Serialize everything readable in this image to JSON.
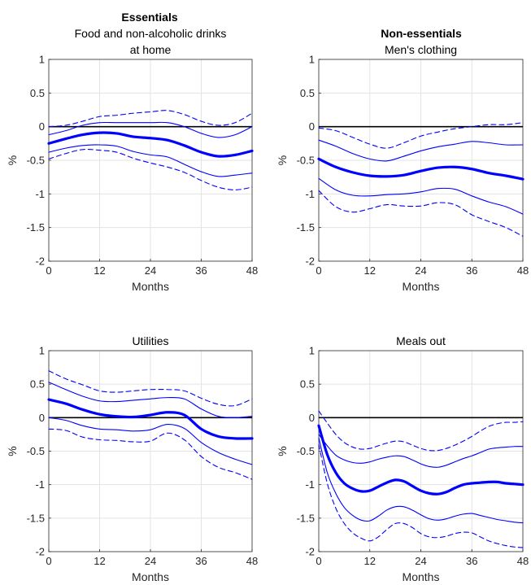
{
  "figure": {
    "column_headers": [
      "Essentials",
      "Non-essentials"
    ]
  },
  "chart_data": [
    {
      "type": "line",
      "title": "Food and non-alcoholic drinks at home",
      "title_lines": [
        "Food and non-alcoholic drinks",
        "at home"
      ],
      "xlabel": "Months",
      "ylabel": "%",
      "xlim": [
        0,
        48
      ],
      "ylim": [
        -2,
        1
      ],
      "xticks": [
        0,
        12,
        24,
        36,
        48
      ],
      "yticks": [
        1,
        0.5,
        0,
        -0.5,
        -1,
        -1.5,
        -2
      ],
      "grid": true,
      "zero_line": true,
      "x": [
        0,
        4,
        8,
        12,
        16,
        20,
        24,
        28,
        32,
        36,
        40,
        44,
        48
      ],
      "series": [
        {
          "role": "central",
          "values": [
            -0.25,
            -0.18,
            -0.12,
            -0.09,
            -0.1,
            -0.15,
            -0.17,
            -0.2,
            -0.28,
            -0.38,
            -0.44,
            -0.42,
            -0.36
          ]
        },
        {
          "role": "inner_upper",
          "values": [
            -0.12,
            -0.06,
            0.02,
            0.06,
            0.06,
            0.06,
            0.06,
            0.06,
            0.0,
            -0.1,
            -0.16,
            -0.12,
            0.0
          ]
        },
        {
          "role": "inner_lower",
          "values": [
            -0.38,
            -0.32,
            -0.28,
            -0.27,
            -0.29,
            -0.37,
            -0.42,
            -0.45,
            -0.56,
            -0.67,
            -0.74,
            -0.72,
            -0.69
          ]
        },
        {
          "role": "outer_upper",
          "values": [
            0.0,
            0.02,
            0.08,
            0.15,
            0.17,
            0.2,
            0.22,
            0.24,
            0.18,
            0.08,
            0.02,
            0.06,
            0.2
          ]
        },
        {
          "role": "outer_lower",
          "values": [
            -0.48,
            -0.4,
            -0.34,
            -0.35,
            -0.38,
            -0.47,
            -0.54,
            -0.6,
            -0.68,
            -0.8,
            -0.9,
            -0.94,
            -0.9
          ]
        }
      ],
      "colors": {
        "bands": "#0000ff",
        "zero": "#000000"
      }
    },
    {
      "type": "line",
      "title": "Men's clothing",
      "title_lines": [
        "Men's clothing"
      ],
      "xlabel": "Months",
      "ylabel": "%",
      "xlim": [
        0,
        48
      ],
      "ylim": [
        -2,
        1
      ],
      "xticks": [
        0,
        12,
        24,
        36,
        48
      ],
      "yticks": [
        1,
        0.5,
        0,
        -0.5,
        -1,
        -1.5,
        -2
      ],
      "grid": true,
      "zero_line": true,
      "x": [
        0,
        4,
        8,
        12,
        16,
        20,
        24,
        28,
        32,
        36,
        40,
        44,
        48
      ],
      "series": [
        {
          "role": "central",
          "values": [
            -0.48,
            -0.6,
            -0.68,
            -0.73,
            -0.74,
            -0.72,
            -0.66,
            -0.61,
            -0.6,
            -0.63,
            -0.69,
            -0.73,
            -0.78
          ]
        },
        {
          "role": "inner_upper",
          "values": [
            -0.2,
            -0.29,
            -0.4,
            -0.48,
            -0.51,
            -0.44,
            -0.36,
            -0.3,
            -0.26,
            -0.22,
            -0.24,
            -0.27,
            -0.27
          ]
        },
        {
          "role": "inner_lower",
          "values": [
            -0.77,
            -0.94,
            -1.02,
            -1.03,
            -1.01,
            -1.0,
            -0.97,
            -0.92,
            -0.93,
            -1.03,
            -1.12,
            -1.19,
            -1.3
          ]
        },
        {
          "role": "outer_upper",
          "values": [
            -0.02,
            -0.06,
            -0.16,
            -0.26,
            -0.32,
            -0.24,
            -0.14,
            -0.08,
            -0.03,
            0.0,
            0.03,
            0.03,
            0.06
          ]
        },
        {
          "role": "outer_lower",
          "values": [
            -0.95,
            -1.19,
            -1.27,
            -1.22,
            -1.16,
            -1.18,
            -1.18,
            -1.13,
            -1.16,
            -1.31,
            -1.41,
            -1.5,
            -1.63
          ]
        }
      ],
      "colors": {
        "bands": "#0000ff",
        "zero": "#000000"
      }
    },
    {
      "type": "line",
      "title": "Utilities",
      "title_lines": [
        "Utilities"
      ],
      "xlabel": "Months",
      "ylabel": "%",
      "xlim": [
        0,
        48
      ],
      "ylim": [
        -2,
        1
      ],
      "xticks": [
        0,
        12,
        24,
        36,
        48
      ],
      "yticks": [
        1,
        0.5,
        0,
        -0.5,
        -1,
        -1.5,
        -2
      ],
      "grid": true,
      "zero_line": true,
      "x": [
        0,
        4,
        8,
        12,
        16,
        20,
        24,
        28,
        32,
        36,
        40,
        44,
        48
      ],
      "series": [
        {
          "role": "central",
          "values": [
            0.27,
            0.21,
            0.12,
            0.05,
            0.02,
            0.01,
            0.04,
            0.08,
            0.04,
            -0.17,
            -0.28,
            -0.31,
            -0.31
          ]
        },
        {
          "role": "inner_upper",
          "values": [
            0.53,
            0.42,
            0.32,
            0.25,
            0.24,
            0.26,
            0.28,
            0.3,
            0.28,
            0.13,
            0.02,
            0.0,
            0.02
          ]
        },
        {
          "role": "inner_lower",
          "values": [
            0.0,
            -0.04,
            -0.12,
            -0.17,
            -0.18,
            -0.2,
            -0.18,
            -0.1,
            -0.16,
            -0.37,
            -0.52,
            -0.62,
            -0.7
          ]
        },
        {
          "role": "outer_upper",
          "values": [
            0.7,
            0.58,
            0.49,
            0.4,
            0.38,
            0.4,
            0.42,
            0.42,
            0.4,
            0.29,
            0.2,
            0.18,
            0.28
          ]
        },
        {
          "role": "outer_lower",
          "values": [
            -0.17,
            -0.19,
            -0.29,
            -0.33,
            -0.34,
            -0.36,
            -0.35,
            -0.23,
            -0.33,
            -0.58,
            -0.74,
            -0.82,
            -0.92
          ]
        }
      ],
      "colors": {
        "bands": "#0000ff",
        "zero": "#000000"
      }
    },
    {
      "type": "line",
      "title": "Meals out",
      "title_lines": [
        "Meals out"
      ],
      "xlabel": "Months",
      "ylabel": "%",
      "xlim": [
        0,
        48
      ],
      "ylim": [
        -2,
        1
      ],
      "xticks": [
        0,
        12,
        24,
        36,
        48
      ],
      "yticks": [
        1,
        0.5,
        0,
        -0.5,
        -1,
        -1.5,
        -2
      ],
      "grid": true,
      "zero_line": true,
      "x": [
        0,
        2,
        4,
        6,
        8,
        10,
        12,
        14,
        16,
        18,
        20,
        22,
        24,
        26,
        28,
        30,
        32,
        34,
        36,
        38,
        40,
        42,
        44,
        46,
        48
      ],
      "series": [
        {
          "role": "central",
          "values": [
            -0.12,
            -0.55,
            -0.82,
            -0.98,
            -1.06,
            -1.1,
            -1.09,
            -1.03,
            -0.97,
            -0.93,
            -0.95,
            -1.02,
            -1.09,
            -1.13,
            -1.14,
            -1.11,
            -1.05,
            -1.0,
            -0.98,
            -0.97,
            -0.96,
            -0.96,
            -0.98,
            -0.99,
            -1.0
          ]
        },
        {
          "role": "inner_upper",
          "values": [
            -0.25,
            -0.42,
            -0.56,
            -0.63,
            -0.67,
            -0.68,
            -0.66,
            -0.62,
            -0.59,
            -0.57,
            -0.58,
            -0.63,
            -0.69,
            -0.73,
            -0.74,
            -0.71,
            -0.66,
            -0.61,
            -0.57,
            -0.52,
            -0.47,
            -0.45,
            -0.44,
            -0.43,
            -0.43
          ]
        },
        {
          "role": "inner_lower",
          "values": [
            -0.3,
            -0.82,
            -1.13,
            -1.34,
            -1.46,
            -1.53,
            -1.54,
            -1.47,
            -1.38,
            -1.33,
            -1.33,
            -1.38,
            -1.45,
            -1.51,
            -1.53,
            -1.51,
            -1.47,
            -1.44,
            -1.43,
            -1.46,
            -1.49,
            -1.52,
            -1.54,
            -1.56,
            -1.57
          ]
        },
        {
          "role": "outer_upper",
          "values": [
            0.1,
            -0.08,
            -0.25,
            -0.37,
            -0.44,
            -0.47,
            -0.46,
            -0.42,
            -0.38,
            -0.35,
            -0.36,
            -0.41,
            -0.46,
            -0.49,
            -0.49,
            -0.46,
            -0.41,
            -0.35,
            -0.28,
            -0.2,
            -0.13,
            -0.09,
            -0.07,
            -0.07,
            -0.06
          ]
        },
        {
          "role": "outer_lower",
          "values": [
            -0.4,
            -0.98,
            -1.35,
            -1.58,
            -1.72,
            -1.8,
            -1.84,
            -1.78,
            -1.67,
            -1.58,
            -1.58,
            -1.64,
            -1.73,
            -1.78,
            -1.79,
            -1.77,
            -1.73,
            -1.71,
            -1.72,
            -1.78,
            -1.84,
            -1.88,
            -1.91,
            -1.93,
            -1.94
          ]
        }
      ],
      "colors": {
        "bands": "#0000ff",
        "zero": "#000000"
      }
    }
  ]
}
